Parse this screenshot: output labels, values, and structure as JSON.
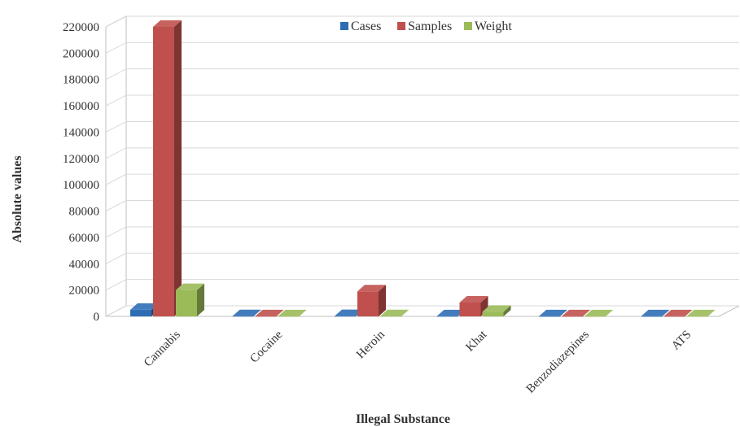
{
  "chart_data": {
    "type": "bar",
    "style": "3d-clustered-column",
    "title": "",
    "xlabel": "Illegal Substance",
    "ylabel": "Absolute values",
    "categories": [
      "Cannabis",
      "Cocaine",
      "Heroin",
      "Khat",
      "Benzodiazepines",
      "ATS"
    ],
    "series": [
      {
        "name": "Cases",
        "color": "#2E6DB4",
        "values": [
          5000,
          150,
          200,
          100,
          50,
          50
        ]
      },
      {
        "name": "Samples",
        "color": "#C0504D",
        "values": [
          220000,
          100,
          19000,
          10500,
          50,
          50
        ]
      },
      {
        "name": "Weight",
        "color": "#9BBB59",
        "values": [
          20000,
          80,
          150,
          3500,
          50,
          50
        ]
      }
    ],
    "ylim": [
      0,
      220000
    ],
    "yticks": [
      "0",
      "20000",
      "40000",
      "60000",
      "80000",
      "100000",
      "120000",
      "140000",
      "160000",
      "180000",
      "200000",
      "220000"
    ],
    "grid": true,
    "legend": "top-center"
  }
}
